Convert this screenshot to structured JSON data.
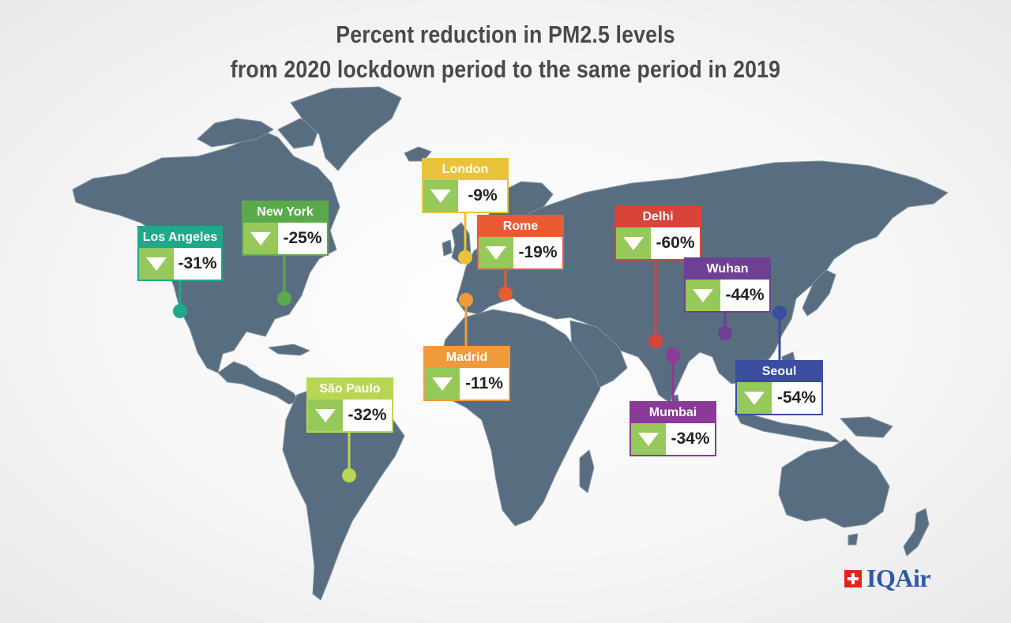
{
  "title": {
    "line1": "Percent reduction in PM2.5 levels",
    "line2": "from 2020 lockdown period to the same period in 2019"
  },
  "cities": [
    {
      "name": "London",
      "value": "-9%",
      "color": "#e9c43a"
    },
    {
      "name": "New York",
      "value": "-25%",
      "color": "#5aaa4c"
    },
    {
      "name": "Los Angeles",
      "value": "-31%",
      "color": "#1fa98a"
    },
    {
      "name": "Rome",
      "value": "-19%",
      "color": "#ea5b33"
    },
    {
      "name": "Delhi",
      "value": "-60%",
      "color": "#d8443a"
    },
    {
      "name": "Wuhan",
      "value": "-44%",
      "color": "#6e3f93"
    },
    {
      "name": "Madrid",
      "value": "-11%",
      "color": "#f09a3a"
    },
    {
      "name": "São Paulo",
      "value": "-32%",
      "color": "#b8d654"
    },
    {
      "name": "Seoul",
      "value": "-54%",
      "color": "#3a4da0"
    },
    {
      "name": "Mumbai",
      "value": "-34%",
      "color": "#8b3a98"
    }
  ],
  "colors": {
    "land": "#596d80",
    "down_arrow_box": "#96c85a",
    "title_text": "#4a4a4a"
  },
  "icons": {
    "down_arrow": "down-triangle-icon",
    "logo_mark": "swiss-cross-icon"
  },
  "logo": {
    "text": "IQAir"
  }
}
